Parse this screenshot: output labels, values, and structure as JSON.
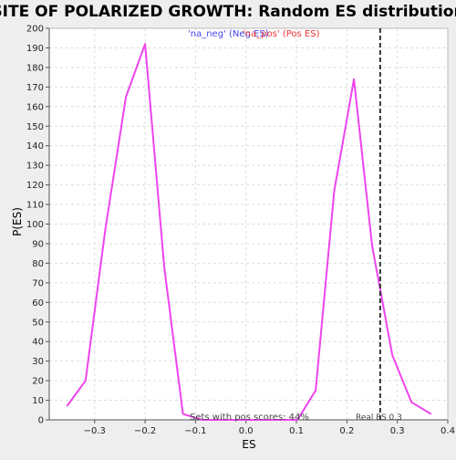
{
  "chart_data": {
    "type": "line",
    "title": "SITE OF POLARIZED GROWTH: Random ES distribution",
    "xlabel": "ES",
    "ylabel": "P(ES)",
    "xlim": [
      -0.39,
      0.4
    ],
    "ylim": [
      0,
      200
    ],
    "x_ticks": [
      -0.3,
      -0.2,
      -0.1,
      0.0,
      0.1,
      0.2,
      0.3,
      0.4
    ],
    "x_tick_labels": [
      "−0.3",
      "−0.2",
      "−0.1",
      "0.0",
      "0.1",
      "0.2",
      "0.3",
      "0.4"
    ],
    "y_ticks": [
      0,
      10,
      20,
      30,
      40,
      50,
      60,
      70,
      80,
      90,
      100,
      110,
      120,
      130,
      140,
      150,
      160,
      170,
      180,
      190,
      200
    ],
    "grid": true,
    "legend": [
      {
        "label": "'na_neg' (Neg ES)",
        "color": "#4444ee"
      },
      {
        "label": "'na_pos' (Pos ES)",
        "color": "#ee3333"
      }
    ],
    "legend_position": "top-center",
    "series": [
      {
        "color": "#ee44ee",
        "x": [
          -0.355,
          -0.318,
          -0.279,
          -0.238,
          -0.2,
          -0.162,
          -0.125,
          -0.087,
          0.102,
          0.138,
          0.175,
          0.214,
          0.25,
          0.29,
          0.328,
          0.367
        ],
        "y": [
          7,
          20,
          97,
          165,
          192,
          78,
          3,
          0,
          0,
          15,
          117,
          174,
          89,
          33,
          9,
          3
        ]
      }
    ],
    "reference_line": {
      "x": 0.266,
      "label": "Real ES 0.3",
      "style": "dashed",
      "color": "#333333"
    },
    "annotation": "Sets with pos scores: 44%"
  }
}
